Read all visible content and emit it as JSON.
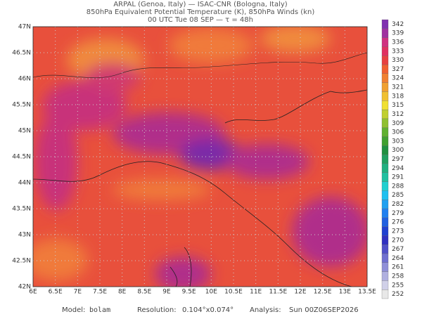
{
  "header": {
    "line1": "ARPAL (Genoa, Italy)  —  ISAC-CNR (Bologna, Italy)",
    "line2": "850hPa Equivalent Potential Temperature (K), 850hPa Winds (kn)",
    "line3": "00 UTC Tue 08 SEP  —  τ = 48h"
  },
  "map": {
    "xlim": [
      6,
      13.5
    ],
    "ylim": [
      42,
      47
    ],
    "xticks": [
      {
        "value": 6,
        "label": "6E"
      },
      {
        "value": 6.5,
        "label": "6.5E"
      },
      {
        "value": 7,
        "label": "7E"
      },
      {
        "value": 7.5,
        "label": "7.5E"
      },
      {
        "value": 8,
        "label": "8E"
      },
      {
        "value": 8.5,
        "label": "8.5E"
      },
      {
        "value": 9,
        "label": "9E"
      },
      {
        "value": 9.5,
        "label": "9.5E"
      },
      {
        "value": 10,
        "label": "10E"
      },
      {
        "value": 10.5,
        "label": "10.5E"
      },
      {
        "value": 11,
        "label": "11E"
      },
      {
        "value": 11.5,
        "label": "11.5E"
      },
      {
        "value": 12,
        "label": "12E"
      },
      {
        "value": 12.5,
        "label": "12.5E"
      },
      {
        "value": 13,
        "label": "13E"
      },
      {
        "value": 13.5,
        "label": "13.5E"
      }
    ],
    "yticks": [
      {
        "value": 42,
        "label": "42N"
      },
      {
        "value": 42.5,
        "label": "42.5N"
      },
      {
        "value": 43,
        "label": "43N"
      },
      {
        "value": 43.5,
        "label": "43.5N"
      },
      {
        "value": 44,
        "label": "44N"
      },
      {
        "value": 44.5,
        "label": "44.5N"
      },
      {
        "value": 45,
        "label": "45N"
      },
      {
        "value": 45.5,
        "label": "45.5N"
      },
      {
        "value": 46,
        "label": "46N"
      },
      {
        "value": 46.5,
        "label": "46.5N"
      },
      {
        "value": 47,
        "label": "47N"
      }
    ]
  },
  "colorbar": {
    "levels": [
      252,
      255,
      258,
      261,
      264,
      267,
      270,
      273,
      276,
      279,
      282,
      285,
      288,
      291,
      294,
      297,
      300,
      303,
      306,
      309,
      312,
      315,
      318,
      321,
      324,
      327,
      330,
      333,
      336,
      339,
      342
    ],
    "colors": [
      "#e8e8e8",
      "#d0d0e8",
      "#b0b0e0",
      "#9090d8",
      "#7070d0",
      "#5050c8",
      "#3030c0",
      "#2040d0",
      "#2060e0",
      "#2080f0",
      "#20a0f0",
      "#20c0f0",
      "#20d0d0",
      "#20c0a0",
      "#20b080",
      "#20a060",
      "#209040",
      "#40a030",
      "#60b030",
      "#90c030",
      "#c0d030",
      "#f0e030",
      "#f0c030",
      "#f0a030",
      "#f08030",
      "#f06030",
      "#e84040",
      "#e03060",
      "#d03080",
      "#a030a0",
      "#8030b0"
    ]
  },
  "footer": {
    "model_label": "Model:",
    "model": "bolam",
    "resolution_label": "Resolution:",
    "resolution": "0.104°x0.074°",
    "analysis_label": "Analysis:",
    "analysis": "Sun 00Z06SEP2026"
  }
}
